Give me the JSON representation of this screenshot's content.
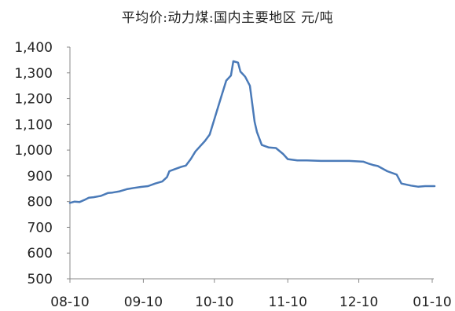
{
  "chart_data": {
    "type": "line",
    "title": "平均价:动力煤:国内主要地区 元/吨",
    "xlabel": "",
    "ylabel": "",
    "ylim": [
      500,
      1400
    ],
    "y_ticks": [
      500,
      600,
      700,
      800,
      900,
      1000,
      1100,
      1200,
      1300,
      1400
    ],
    "y_tick_labels": [
      "500",
      "600",
      "700",
      "800",
      "900",
      "1,000",
      "1,100",
      "1,200",
      "1,300",
      "1,400"
    ],
    "x_tick_labels": [
      "08-10",
      "09-10",
      "10-10",
      "11-10",
      "12-10",
      "01-10"
    ],
    "grid": false,
    "legend": "none",
    "colors": {
      "line": "#4a7ab8",
      "axis": "#888888",
      "text": "#222222"
    },
    "series": [
      {
        "x": [
          "2021-08-10",
          "2021-08-12",
          "2021-08-14",
          "2021-08-16",
          "2021-08-18",
          "2021-08-20",
          "2021-08-23",
          "2021-08-26",
          "2021-08-28",
          "2021-08-31",
          "2021-09-03",
          "2021-09-06",
          "2021-09-09",
          "2021-09-12",
          "2021-09-15",
          "2021-09-18",
          "2021-09-20",
          "2021-09-21",
          "2021-09-23",
          "2021-09-26",
          "2021-09-28",
          "2021-09-30",
          "2021-10-02",
          "2021-10-04",
          "2021-10-06",
          "2021-10-08",
          "2021-10-10",
          "2021-10-11",
          "2021-10-13",
          "2021-10-15",
          "2021-10-17",
          "2021-10-18",
          "2021-10-20",
          "2021-10-21",
          "2021-10-22",
          "2021-10-23",
          "2021-10-25",
          "2021-10-27",
          "2021-10-28",
          "2021-10-30",
          "2021-11-02",
          "2021-11-05",
          "2021-11-08",
          "2021-11-10",
          "2021-11-14",
          "2021-11-18",
          "2021-11-24",
          "2021-11-30",
          "2021-12-06",
          "2021-12-12",
          "2021-12-14",
          "2021-12-16",
          "2021-12-18",
          "2021-12-22",
          "2021-12-26",
          "2021-12-28",
          "2022-01-01",
          "2022-01-04",
          "2022-01-07",
          "2022-01-10",
          "2022-01-11"
        ],
        "values": [
          795,
          800,
          798,
          806,
          815,
          817,
          822,
          833,
          835,
          840,
          848,
          853,
          857,
          860,
          870,
          878,
          895,
          918,
          925,
          935,
          940,
          965,
          995,
          1015,
          1035,
          1060,
          1120,
          1150,
          1210,
          1270,
          1290,
          1345,
          1340,
          1305,
          1295,
          1285,
          1250,
          1110,
          1070,
          1020,
          1010,
          1008,
          985,
          965,
          960,
          960,
          958,
          958,
          958,
          955,
          948,
          942,
          938,
          918,
          905,
          870,
          862,
          858,
          860,
          860,
          860
        ]
      }
    ]
  }
}
